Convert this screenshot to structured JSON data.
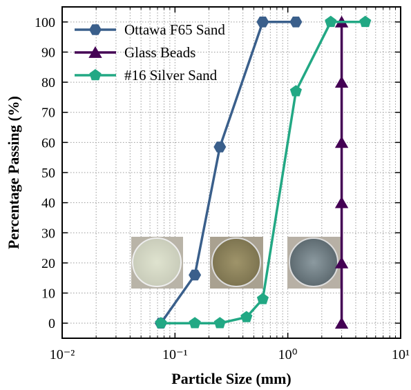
{
  "chart_data": {
    "type": "line",
    "xlabel": "Particle Size (mm)",
    "ylabel": "Percentage Passing (%)",
    "xscale": "log",
    "xlim": [
      0.01,
      10
    ],
    "ylim": [
      -5,
      105
    ],
    "xticks": [
      {
        "value": 0.01,
        "label": "10⁻²"
      },
      {
        "value": 0.1,
        "label": "10⁻¹"
      },
      {
        "value": 1,
        "label": "10⁰"
      },
      {
        "value": 10,
        "label": "10¹"
      }
    ],
    "yticks": [
      0,
      10,
      20,
      30,
      40,
      50,
      60,
      70,
      80,
      90,
      100
    ],
    "grid": true,
    "legend": "upper left",
    "series": [
      {
        "name": "Ottawa F65 Sand",
        "color": "#3a5f8b",
        "marker": "hexagon",
        "x": [
          0.075,
          0.15,
          0.25,
          0.6,
          1.18
        ],
        "values": [
          0,
          16,
          58.5,
          100,
          100
        ]
      },
      {
        "name": "Glass Beads",
        "color": "#440154",
        "marker": "triangle",
        "x": [
          3,
          3,
          3,
          3,
          3,
          3
        ],
        "values": [
          0,
          20,
          40,
          60,
          80,
          100
        ]
      },
      {
        "name": "#16 Silver Sand",
        "color": "#22a884",
        "marker": "pentagon",
        "x": [
          0.075,
          0.15,
          0.25,
          0.43,
          0.6,
          1.18,
          2.4,
          4.86
        ],
        "values": [
          0,
          0,
          0,
          2,
          8,
          77,
          100,
          100
        ]
      }
    ]
  }
}
